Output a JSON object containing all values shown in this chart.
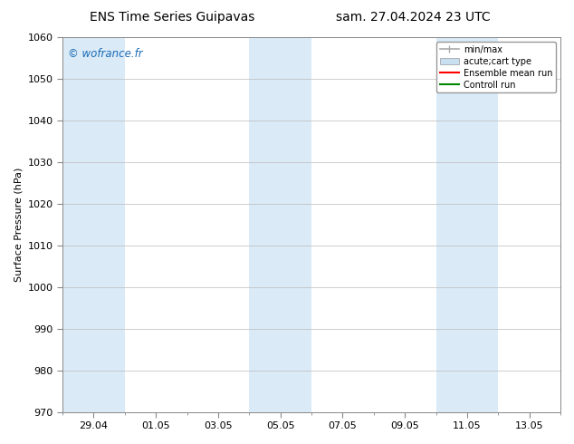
{
  "title_left": "ENS Time Series Guipavas",
  "title_right": "sam. 27.04.2024 23 UTC",
  "ylabel": "Surface Pressure (hPa)",
  "ylim": [
    970,
    1060
  ],
  "yticks": [
    970,
    980,
    990,
    1000,
    1010,
    1020,
    1030,
    1040,
    1050,
    1060
  ],
  "watermark": "© wofrance.fr",
  "watermark_color": "#1a6bb5",
  "background_color": "#ffffff",
  "plot_bg_color": "#ffffff",
  "shaded_color": "#daeaf7",
  "x_tick_labels": [
    "29.04",
    "01.05",
    "03.05",
    "05.05",
    "07.05",
    "09.05",
    "11.05",
    "13.05"
  ],
  "x_tick_offsets": [
    1,
    3,
    5,
    7,
    9,
    11,
    13,
    15
  ],
  "xlim_start": 0,
  "xlim_end": 16,
  "shaded_bands": [
    {
      "xstart": 0,
      "xend": 2
    },
    {
      "xstart": 6,
      "xend": 8
    },
    {
      "xstart": 12,
      "xend": 14
    }
  ],
  "legend_items": [
    {
      "label": "min/max",
      "color": "#aaaaaa",
      "lw": 1.2,
      "style": "errbar"
    },
    {
      "label": "acute;cart type",
      "color": "#c8dff0",
      "lw": 6,
      "style": "rect"
    },
    {
      "label": "Ensemble mean run",
      "color": "#ff0000",
      "lw": 1.5,
      "style": "line"
    },
    {
      "label": "Controll run",
      "color": "#008800",
      "lw": 1.5,
      "style": "line"
    }
  ],
  "grid_color": "#bbbbbb",
  "title_fontsize": 10,
  "axis_fontsize": 8,
  "tick_fontsize": 8,
  "watermark_fontsize": 8.5
}
